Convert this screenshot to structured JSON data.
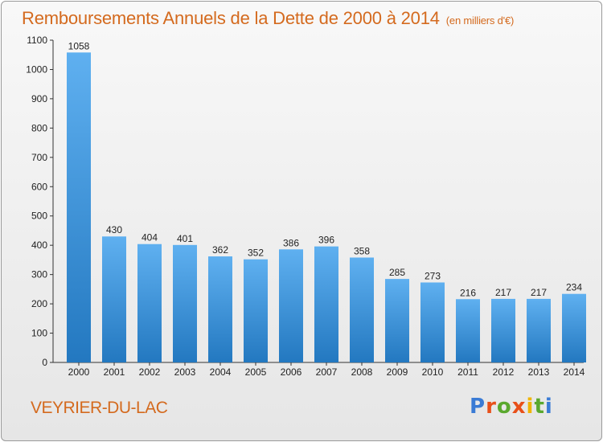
{
  "header": {
    "title": "Remboursements Annuels de la Dette de 2000 à 2014",
    "unit_note": "(en milliers d'€)"
  },
  "footer": {
    "commune": "VEYRIER-DU-LAC",
    "brand": "Proxiti",
    "brand_colors": [
      "#3a7bd5",
      "#e8501a",
      "#5aa82e",
      "#e8501a",
      "#f0b400",
      "#5aa82e",
      "#3a7bd5"
    ]
  },
  "colors": {
    "title": "#d46a1e",
    "bar_top": "#5fb0f0",
    "bar_bottom": "#2378c0"
  },
  "chart_data": {
    "type": "bar",
    "title": "Remboursements Annuels de la Dette de 2000 à 2014",
    "ylabel": "",
    "xlabel": "",
    "ylim": [
      0,
      1100
    ],
    "ytick_step": 100,
    "grid": false,
    "categories": [
      "2000",
      "2001",
      "2002",
      "2003",
      "2004",
      "2005",
      "2006",
      "2007",
      "2008",
      "2009",
      "2010",
      "2011",
      "2012",
      "2013",
      "2014"
    ],
    "values": [
      1058,
      430,
      404,
      401,
      362,
      352,
      386,
      396,
      358,
      285,
      273,
      216,
      217,
      217,
      234
    ]
  }
}
